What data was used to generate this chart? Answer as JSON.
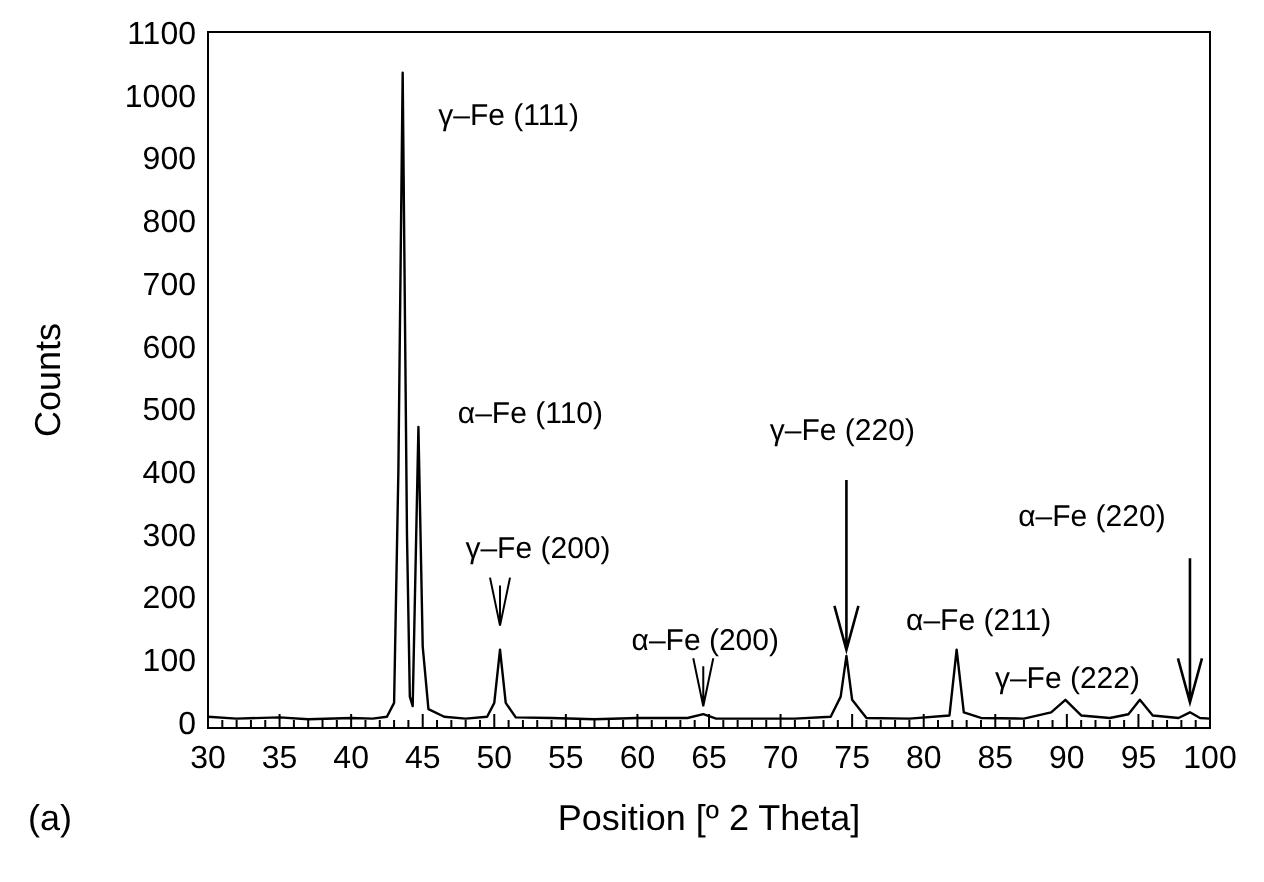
{
  "chart_data": {
    "type": "line",
    "xlabel": "Position [º 2 Theta]",
    "ylabel": "Counts",
    "x": [
      30,
      32,
      35,
      37,
      40,
      41.5,
      42.5,
      43,
      43.3,
      43.6,
      43.9,
      44.1,
      44.3,
      44.7,
      45,
      45.4,
      46.5,
      48,
      49.5,
      50,
      50.4,
      50.8,
      51.5,
      54,
      57,
      60,
      63.5,
      64.6,
      65.5,
      68,
      71,
      73.5,
      74.2,
      74.6,
      75,
      76,
      79,
      81.8,
      82.3,
      82.8,
      84,
      87,
      88.9,
      89.9,
      91,
      93,
      94.3,
      95.1,
      96,
      97.8,
      98.6,
      99.3,
      100
    ],
    "series": [
      {
        "color": "#000000",
        "values": [
          8,
          5,
          7,
          4,
          6,
          5,
          8,
          30,
          400,
          1035,
          300,
          40,
          25,
          470,
          120,
          20,
          8,
          5,
          8,
          30,
          115,
          30,
          7,
          6,
          4,
          6,
          6,
          12,
          5,
          5,
          5,
          8,
          40,
          105,
          35,
          6,
          5,
          10,
          115,
          15,
          6,
          5,
          15,
          35,
          10,
          6,
          12,
          35,
          10,
          6,
          15,
          6,
          5
        ]
      }
    ],
    "xlim": [
      30,
      100
    ],
    "xticks": [
      30,
      {
        "value": 31,
        "label": null
      },
      {
        "value": 32,
        "label": null
      },
      {
        "value": 33,
        "label": null
      },
      {
        "value": 34,
        "label": null
      },
      35,
      {
        "value": 36,
        "label": null
      },
      {
        "value": 37,
        "label": null
      },
      {
        "value": 38,
        "label": null
      },
      {
        "value": 39,
        "label": null
      },
      40,
      {
        "value": 41,
        "label": null
      },
      {
        "value": 42,
        "label": null
      },
      {
        "value": 43,
        "label": null
      },
      {
        "value": 44,
        "label": null
      },
      45,
      {
        "value": 46,
        "label": null
      },
      {
        "value": 47,
        "label": null
      },
      {
        "value": 48,
        "label": null
      },
      {
        "value": 49,
        "label": null
      },
      50,
      {
        "value": 51,
        "label": null
      },
      {
        "value": 52,
        "label": null
      },
      {
        "value": 53,
        "label": null
      },
      {
        "value": 54,
        "label": null
      },
      55,
      {
        "value": 56,
        "label": null
      },
      {
        "value": 57,
        "label": null
      },
      {
        "value": 58,
        "label": null
      },
      {
        "value": 59,
        "label": null
      },
      60,
      {
        "value": 61,
        "label": null
      },
      {
        "value": 62,
        "label": null
      },
      {
        "value": 63,
        "label": null
      },
      {
        "value": 64,
        "label": null
      },
      65,
      {
        "value": 66,
        "label": null
      },
      {
        "value": 67,
        "label": null
      },
      {
        "value": 68,
        "label": null
      },
      {
        "value": 69,
        "label": null
      },
      70,
      {
        "value": 71,
        "label": null
      },
      {
        "value": 72,
        "label": null
      },
      {
        "value": 73,
        "label": null
      },
      {
        "value": 74,
        "label": null
      },
      75,
      {
        "value": 76,
        "label": null
      },
      {
        "value": 77,
        "label": null
      },
      {
        "value": 78,
        "label": null
      },
      {
        "value": 79,
        "label": null
      },
      80,
      {
        "value": 81,
        "label": null
      },
      {
        "value": 82,
        "label": null
      },
      {
        "value": 83,
        "label": null
      },
      {
        "value": 84,
        "label": null
      },
      85,
      {
        "value": 86,
        "label": null
      },
      {
        "value": 87,
        "label": null
      },
      {
        "value": 88,
        "label": null
      },
      {
        "value": 89,
        "label": null
      },
      90,
      {
        "value": 91,
        "label": null
      },
      {
        "value": 92,
        "label": null
      },
      {
        "value": 93,
        "label": null
      },
      {
        "value": 94,
        "label": null
      },
      95,
      {
        "value": 96,
        "label": null
      },
      {
        "value": 97,
        "label": null
      },
      {
        "value": 98,
        "label": null
      },
      {
        "value": 99,
        "label": null
      },
      100
    ],
    "ylim": [
      -10,
      1100
    ],
    "yticks": [
      0,
      100,
      200,
      300,
      400,
      500,
      600,
      700,
      800,
      900,
      1000,
      1100
    ],
    "grid": false,
    "marker": "none",
    "line_style": "solid",
    "annotations": [
      {
        "text": "γ–Fe (111)",
        "x": 43.6,
        "y": 1035
      },
      {
        "text": "α–Fe (110)",
        "x": 44.7,
        "y": 470
      },
      {
        "text": "γ–Fe (200)",
        "x": 50.4,
        "y": 115
      },
      {
        "text": "α–Fe (200)",
        "x": 64.6,
        "y": 12
      },
      {
        "text": "γ–Fe (220)",
        "x": 74.6,
        "y": 105
      },
      {
        "text": "α–Fe (211)",
        "x": 82.3,
        "y": 115
      },
      {
        "text": "γ–Fe (222)",
        "x": 89.9,
        "y": 35
      },
      {
        "text": "α–Fe (220)",
        "x": 98.6,
        "y": 15
      },
      "(a)"
    ]
  }
}
